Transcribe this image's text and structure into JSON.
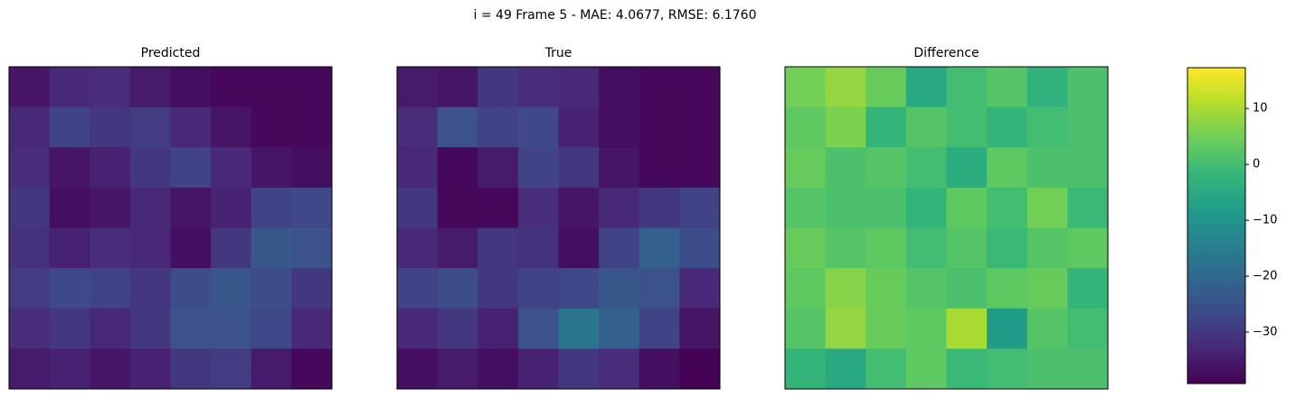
{
  "chart_data": {
    "type": "heatmap",
    "title": "i = 49 Frame 5 - MAE: 4.0677, RMSE: 6.1760",
    "colormap": "viridis",
    "zlim": [
      -39.2,
      17.3
    ],
    "zticks": [
      10,
      0,
      {
        "value": -10,
        "label": "−10"
      },
      {
        "value": -20,
        "label": "−20"
      },
      {
        "value": -30,
        "label": "−30"
      }
    ],
    "panels": [
      {
        "title": "Predicted",
        "values": [
          [
            -36,
            -33,
            -32,
            -35,
            -37,
            -38,
            -38,
            -38
          ],
          [
            -33,
            -28,
            -30,
            -29,
            -33,
            -36,
            -38,
            -38
          ],
          [
            -32,
            -36,
            -34,
            -30,
            -28,
            -33,
            -36,
            -37
          ],
          [
            -30,
            -37,
            -36,
            -33,
            -36,
            -34,
            -28,
            -27
          ],
          [
            -31,
            -34,
            -32,
            -33,
            -37,
            -30,
            -24,
            -25
          ],
          [
            -29,
            -27,
            -28,
            -30,
            -26,
            -24,
            -26,
            -30
          ],
          [
            -32,
            -30,
            -33,
            -30,
            -25,
            -25,
            -27,
            -33
          ],
          [
            -35,
            -34,
            -36,
            -34,
            -30,
            -29,
            -35,
            -38
          ]
        ]
      },
      {
        "title": "True",
        "values": [
          [
            -35,
            -36,
            -30,
            -32,
            -33,
            -37,
            -38,
            -38
          ],
          [
            -32,
            -25,
            -28,
            -27,
            -34,
            -37,
            -38,
            -38
          ],
          [
            -33,
            -38,
            -35,
            -28,
            -30,
            -36,
            -38,
            -38
          ],
          [
            -30,
            -38,
            -38,
            -32,
            -36,
            -33,
            -30,
            -28
          ],
          [
            -33,
            -35,
            -30,
            -31,
            -37,
            -28,
            -22,
            -26
          ],
          [
            -28,
            -26,
            -30,
            -28,
            -27,
            -24,
            -25,
            -33
          ],
          [
            -33,
            -30,
            -34,
            -25,
            -17,
            -22,
            -28,
            -36
          ],
          [
            -37,
            -35,
            -37,
            -34,
            -30,
            -32,
            -37,
            -39
          ]
        ]
      },
      {
        "title": "Difference",
        "values": [
          [
            5,
            8,
            4,
            -5,
            0,
            2,
            -3,
            1
          ],
          [
            3,
            6,
            -2,
            2,
            0,
            -2,
            0,
            1
          ],
          [
            4,
            1,
            2,
            0,
            -4,
            3,
            1,
            1
          ],
          [
            2,
            1,
            1,
            -2,
            3,
            0,
            5,
            -1
          ],
          [
            4,
            2,
            3,
            0,
            2,
            -1,
            2,
            3
          ],
          [
            3,
            7,
            4,
            2,
            1,
            3,
            4,
            -2
          ],
          [
            2,
            8,
            4,
            3,
            10,
            -8,
            2,
            0
          ],
          [
            -2,
            -5,
            0,
            3,
            -1,
            0,
            1,
            1
          ]
        ]
      }
    ]
  }
}
